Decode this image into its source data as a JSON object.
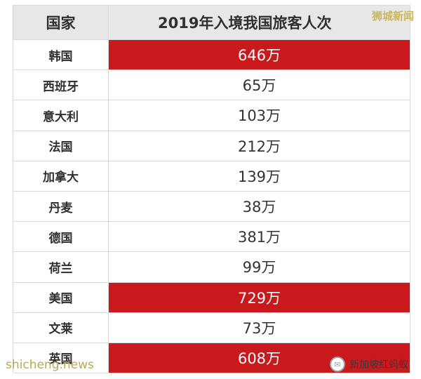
{
  "table": {
    "header": {
      "country": "国家",
      "value": "2019年入境我国旅客人次"
    },
    "rows": [
      {
        "country": "韩国",
        "value": "646万",
        "highlight": true
      },
      {
        "country": "西班牙",
        "value": "65万",
        "highlight": false
      },
      {
        "country": "意大利",
        "value": "103万",
        "highlight": false
      },
      {
        "country": "法国",
        "value": "212万",
        "highlight": false
      },
      {
        "country": "加拿大",
        "value": "139万",
        "highlight": false
      },
      {
        "country": "丹麦",
        "value": "38万",
        "highlight": false
      },
      {
        "country": "德国",
        "value": "381万",
        "highlight": false
      },
      {
        "country": "荷兰",
        "value": "99万",
        "highlight": false
      },
      {
        "country": "美国",
        "value": "729万",
        "highlight": true
      },
      {
        "country": "文莱",
        "value": "73万",
        "highlight": false
      },
      {
        "country": "英国",
        "value": "608万",
        "highlight": true
      }
    ]
  },
  "overlays": {
    "watermark_top": "狮城新闻",
    "watermark_bottom": "shicheng.news",
    "wechat_badge_label": "新加坡红蚂蚁",
    "wechat_icon": "wechat-icon"
  },
  "colors": {
    "highlight": "#c8191d",
    "header_bg": "#e7e7e7",
    "grid": "#d9d9d9",
    "watermark": "#cbb85a"
  }
}
